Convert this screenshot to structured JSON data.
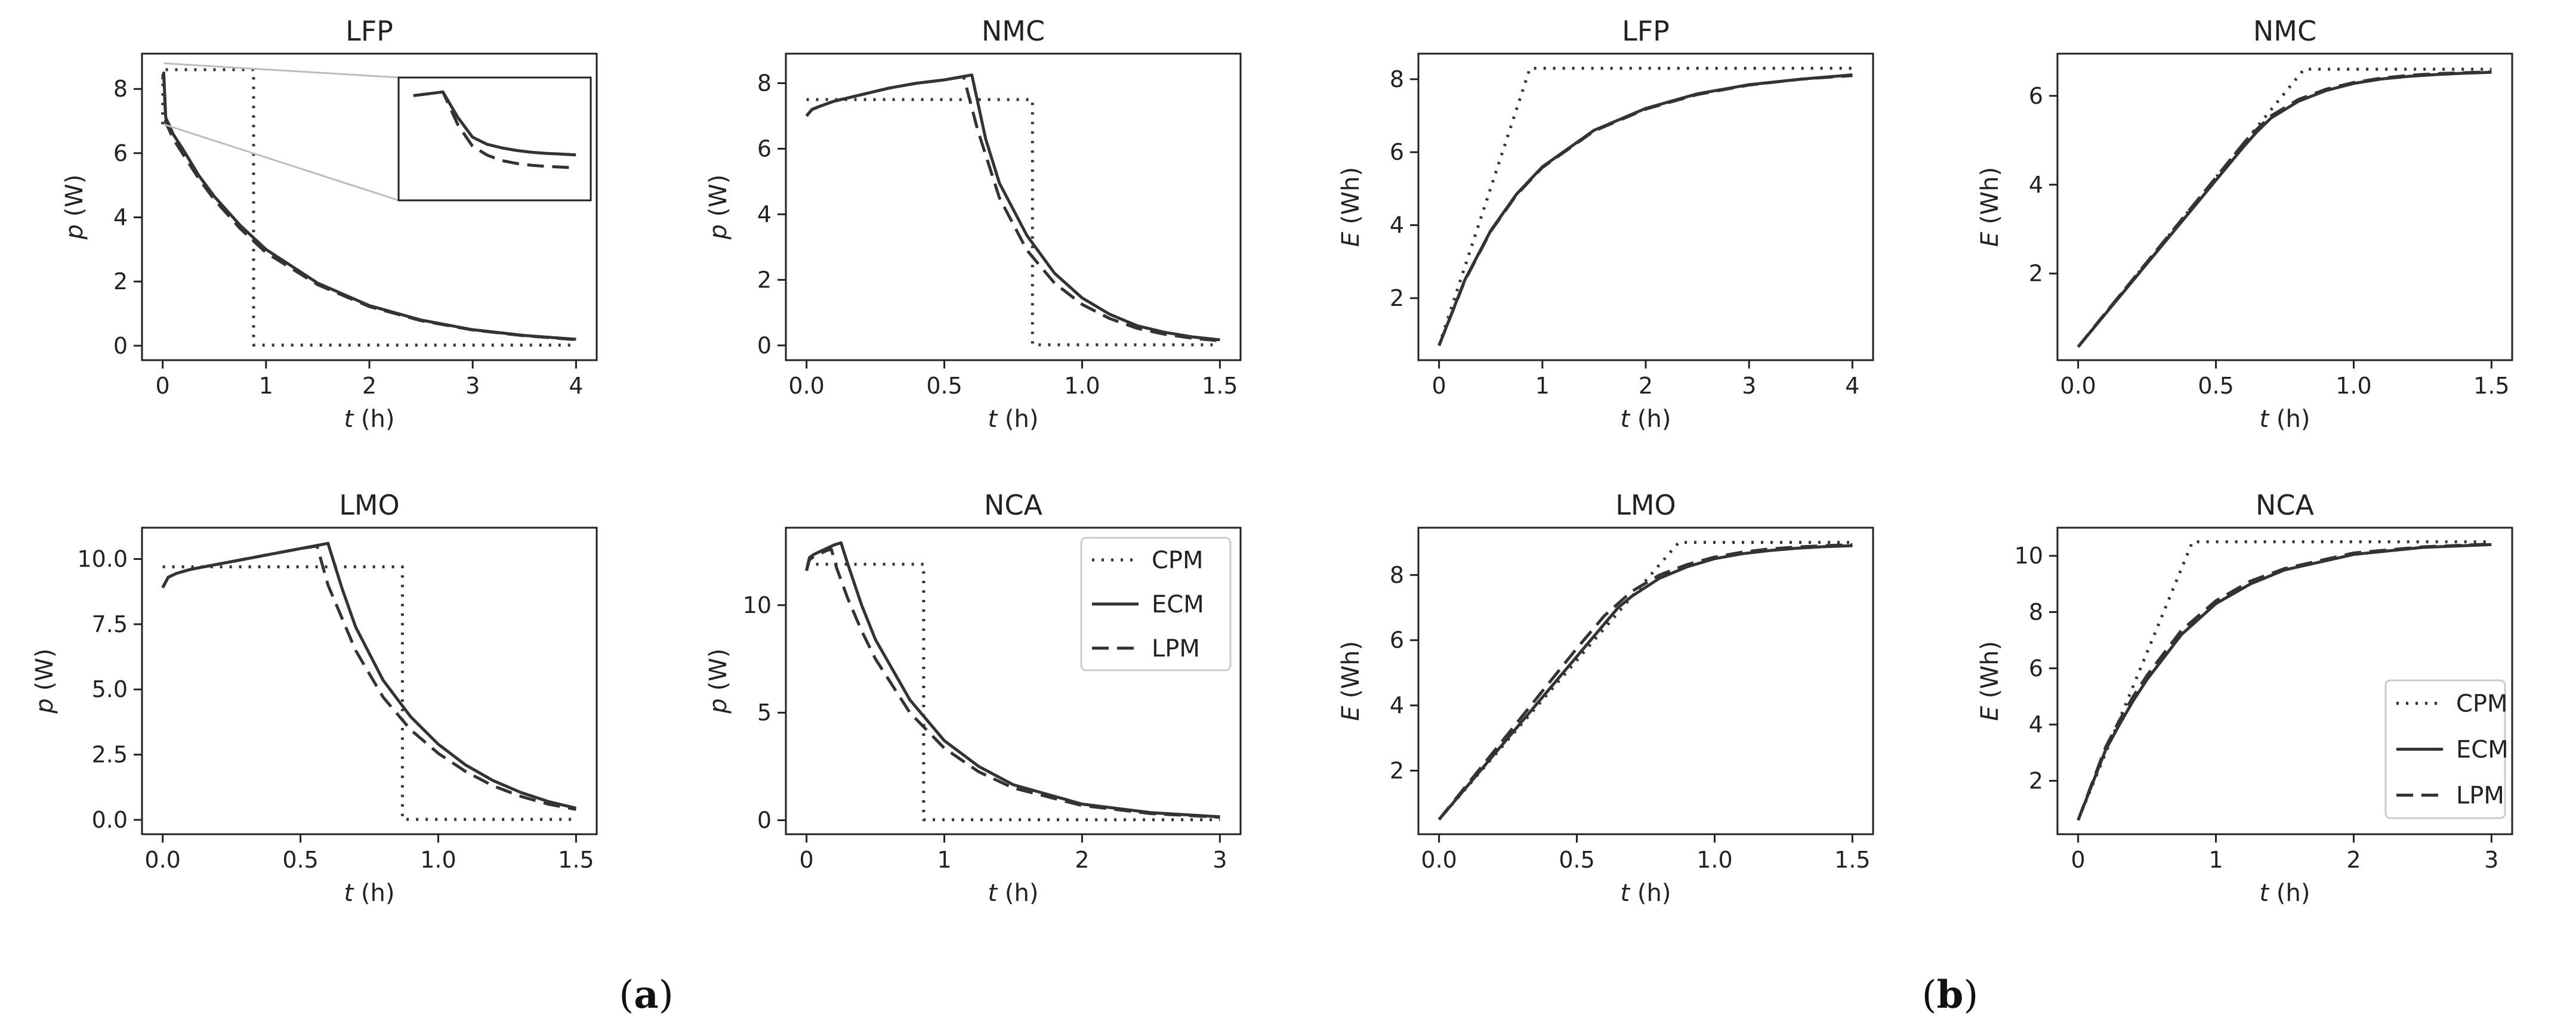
{
  "figure": {
    "panel_labels": [
      {
        "open": "(",
        "letter": "a",
        "close": ")"
      },
      {
        "open": "(",
        "letter": "b",
        "close": ")"
      }
    ]
  },
  "chart_data": [
    {
      "type": "line",
      "title": "LFP",
      "xlabel_var": "t",
      "xlabel_unit": " (h)",
      "ylabel_var": "p",
      "ylabel_unit": " (W)",
      "xlim": [
        -0.2,
        4.2
      ],
      "ylim": [
        -0.45,
        9.1
      ],
      "xticks": [
        0,
        1,
        2,
        3,
        4
      ],
      "xtick_labels": [
        "0",
        "1",
        "2",
        "3",
        "4"
      ],
      "yticks": [
        0,
        2,
        4,
        6,
        8
      ],
      "ytick_labels": [
        "0",
        "2",
        "4",
        "6",
        "8"
      ],
      "series": [
        {
          "name": "CPM",
          "style": "dotted",
          "x": [
            0,
            0.002,
            0.88,
            0.88,
            4.0
          ],
          "y": [
            6.9,
            8.6,
            8.6,
            0.02,
            0.02
          ]
        },
        {
          "name": "ECM",
          "style": "solid",
          "x": [
            0,
            0.01,
            0.03,
            0.06,
            0.1,
            0.2,
            0.35,
            0.5,
            0.75,
            1.0,
            1.5,
            2.0,
            2.5,
            3.0,
            3.5,
            4.0
          ],
          "y": [
            8.3,
            8.5,
            7.1,
            6.9,
            6.6,
            6.1,
            5.3,
            4.65,
            3.75,
            3.0,
            1.95,
            1.25,
            0.8,
            0.5,
            0.32,
            0.2
          ]
        },
        {
          "name": "LPM",
          "style": "dashed",
          "x": [
            0,
            0.01,
            0.03,
            0.06,
            0.1,
            0.2,
            0.35,
            0.5,
            0.75,
            1.0,
            1.5,
            2.0,
            2.5,
            3.0,
            3.5,
            4.0
          ],
          "y": [
            8.3,
            8.45,
            6.95,
            6.75,
            6.45,
            5.95,
            5.2,
            4.55,
            3.65,
            2.9,
            1.9,
            1.22,
            0.78,
            0.49,
            0.31,
            0.19
          ]
        }
      ],
      "annotations": [
        "inset-zoom of peak region"
      ]
    },
    {
      "type": "line",
      "title": "NMC",
      "xlabel_var": "t",
      "xlabel_unit": " (h)",
      "ylabel_var": "p",
      "ylabel_unit": " (W)",
      "xlim": [
        -0.075,
        1.575
      ],
      "ylim": [
        -0.45,
        8.9
      ],
      "xticks": [
        0,
        0.5,
        1.0,
        1.5
      ],
      "xtick_labels": [
        "0.0",
        "0.5",
        "1.0",
        "1.5"
      ],
      "yticks": [
        0,
        2,
        4,
        6,
        8
      ],
      "ytick_labels": [
        "0",
        "2",
        "4",
        "6",
        "8"
      ],
      "series": [
        {
          "name": "CPM",
          "style": "dotted",
          "x": [
            0,
            0.82,
            0.82,
            1.5
          ],
          "y": [
            7.5,
            7.5,
            0.02,
            0.02
          ]
        },
        {
          "name": "ECM",
          "style": "solid",
          "x": [
            0,
            0.02,
            0.05,
            0.1,
            0.2,
            0.3,
            0.4,
            0.5,
            0.6,
            0.65,
            0.7,
            0.8,
            0.9,
            1.0,
            1.1,
            1.2,
            1.3,
            1.4,
            1.5
          ],
          "y": [
            7.0,
            7.2,
            7.3,
            7.45,
            7.65,
            7.85,
            8.0,
            8.1,
            8.25,
            6.3,
            4.95,
            3.35,
            2.2,
            1.45,
            0.95,
            0.6,
            0.4,
            0.26,
            0.17
          ]
        },
        {
          "name": "LPM",
          "style": "dashed",
          "x": [
            0,
            0.02,
            0.05,
            0.1,
            0.2,
            0.3,
            0.4,
            0.5,
            0.57,
            0.62,
            0.7,
            0.8,
            0.9,
            1.0,
            1.1,
            1.2,
            1.3,
            1.4,
            1.5
          ],
          "y": [
            7.0,
            7.2,
            7.3,
            7.45,
            7.65,
            7.85,
            8.0,
            8.1,
            8.2,
            6.6,
            4.5,
            2.9,
            1.9,
            1.25,
            0.82,
            0.52,
            0.34,
            0.22,
            0.14
          ]
        }
      ]
    },
    {
      "type": "line",
      "title": "LFP",
      "xlabel_var": "t",
      "xlabel_unit": " (h)",
      "ylabel_var": "E",
      "ylabel_unit": " (Wh)",
      "xlim": [
        -0.2,
        4.2
      ],
      "ylim": [
        0.3,
        8.7
      ],
      "xticks": [
        0,
        1,
        2,
        3,
        4
      ],
      "xtick_labels": [
        "0",
        "1",
        "2",
        "3",
        "4"
      ],
      "yticks": [
        2,
        4,
        6,
        8
      ],
      "ytick_labels": [
        "2",
        "4",
        "6",
        "8"
      ],
      "series": [
        {
          "name": "CPM",
          "style": "dotted",
          "x": [
            0,
            0.88,
            4.0
          ],
          "y": [
            0.7,
            8.3,
            8.3
          ]
        },
        {
          "name": "ECM",
          "style": "solid",
          "x": [
            0,
            0.25,
            0.5,
            0.75,
            1.0,
            1.5,
            2.0,
            2.5,
            3.0,
            3.5,
            4.0
          ],
          "y": [
            0.7,
            2.5,
            3.85,
            4.85,
            5.6,
            6.6,
            7.2,
            7.6,
            7.85,
            8.0,
            8.12
          ]
        },
        {
          "name": "LPM",
          "style": "dashed",
          "x": [
            0,
            0.25,
            0.5,
            0.75,
            1.0,
            1.5,
            2.0,
            2.5,
            3.0,
            3.5,
            4.0
          ],
          "y": [
            0.7,
            2.48,
            3.83,
            4.83,
            5.58,
            6.58,
            7.18,
            7.58,
            7.84,
            8.0,
            8.1
          ]
        }
      ]
    },
    {
      "type": "line",
      "title": "NMC",
      "xlabel_var": "t",
      "xlabel_unit": " (h)",
      "ylabel_var": "E",
      "ylabel_unit": " (Wh)",
      "xlim": [
        -0.075,
        1.575
      ],
      "ylim": [
        0.05,
        6.95
      ],
      "xticks": [
        0,
        0.5,
        1.0,
        1.5
      ],
      "xtick_labels": [
        "0.0",
        "0.5",
        "1.0",
        "1.5"
      ],
      "yticks": [
        2,
        4,
        6
      ],
      "ytick_labels": [
        "2",
        "4",
        "6"
      ],
      "series": [
        {
          "name": "CPM",
          "style": "dotted",
          "x": [
            0,
            0.82,
            1.5
          ],
          "y": [
            0.35,
            6.6,
            6.6
          ]
        },
        {
          "name": "ECM",
          "style": "solid",
          "x": [
            0,
            0.1,
            0.2,
            0.3,
            0.4,
            0.5,
            0.6,
            0.65,
            0.7,
            0.8,
            0.9,
            1.0,
            1.1,
            1.2,
            1.3,
            1.4,
            1.5
          ],
          "y": [
            0.35,
            1.1,
            1.85,
            2.6,
            3.35,
            4.1,
            4.85,
            5.2,
            5.5,
            5.88,
            6.12,
            6.28,
            6.38,
            6.44,
            6.48,
            6.51,
            6.53
          ]
        },
        {
          "name": "LPM",
          "style": "dashed",
          "x": [
            0,
            0.1,
            0.2,
            0.3,
            0.4,
            0.5,
            0.57,
            0.62,
            0.7,
            0.8,
            0.9,
            1.0,
            1.1,
            1.2,
            1.3,
            1.4,
            1.5
          ],
          "y": [
            0.35,
            1.12,
            1.88,
            2.64,
            3.4,
            4.16,
            4.7,
            5.08,
            5.55,
            5.92,
            6.15,
            6.3,
            6.4,
            6.46,
            6.5,
            6.52,
            6.54
          ]
        }
      ]
    },
    {
      "type": "line",
      "title": "LMO",
      "xlabel_var": "t",
      "xlabel_unit": " (h)",
      "ylabel_var": "p",
      "ylabel_unit": " (W)",
      "xlim": [
        -0.075,
        1.575
      ],
      "ylim": [
        -0.55,
        11.2
      ],
      "xticks": [
        0,
        0.5,
        1.0,
        1.5
      ],
      "xtick_labels": [
        "0.0",
        "0.5",
        "1.0",
        "1.5"
      ],
      "yticks": [
        0,
        2.5,
        5,
        7.5,
        10
      ],
      "ytick_labels": [
        "0.0",
        "2.5",
        "5.0",
        "7.5",
        "10.0"
      ],
      "series": [
        {
          "name": "CPM",
          "style": "dotted",
          "x": [
            0,
            0.87,
            0.87,
            1.5
          ],
          "y": [
            9.7,
            9.7,
            0.02,
            0.02
          ]
        },
        {
          "name": "ECM",
          "style": "solid",
          "x": [
            0,
            0.02,
            0.05,
            0.1,
            0.2,
            0.3,
            0.4,
            0.5,
            0.6,
            0.65,
            0.7,
            0.8,
            0.9,
            1.0,
            1.1,
            1.2,
            1.3,
            1.4,
            1.5
          ],
          "y": [
            8.9,
            9.3,
            9.45,
            9.6,
            9.8,
            10.0,
            10.2,
            10.4,
            10.6,
            8.9,
            7.4,
            5.35,
            3.95,
            2.9,
            2.1,
            1.5,
            1.05,
            0.7,
            0.45
          ]
        },
        {
          "name": "LPM",
          "style": "dashed",
          "x": [
            0,
            0.02,
            0.05,
            0.1,
            0.2,
            0.3,
            0.4,
            0.5,
            0.56,
            0.6,
            0.7,
            0.8,
            0.9,
            1.0,
            1.1,
            1.2,
            1.3,
            1.4,
            1.5
          ],
          "y": [
            8.9,
            9.3,
            9.45,
            9.6,
            9.8,
            10.0,
            10.2,
            10.4,
            10.5,
            9.0,
            6.5,
            4.7,
            3.45,
            2.55,
            1.85,
            1.3,
            0.9,
            0.6,
            0.4
          ]
        }
      ]
    },
    {
      "type": "line",
      "title": "NCA",
      "xlabel_var": "t",
      "xlabel_unit": " (h)",
      "ylabel_var": "p",
      "ylabel_unit": " (W)",
      "xlim": [
        -0.15,
        3.15
      ],
      "ylim": [
        -0.65,
        13.6
      ],
      "xticks": [
        0,
        1,
        2,
        3
      ],
      "xtick_labels": [
        "0",
        "1",
        "2",
        "3"
      ],
      "yticks": [
        0,
        5,
        10
      ],
      "ytick_labels": [
        "0",
        "5",
        "10"
      ],
      "series": [
        {
          "name": "CPM",
          "style": "dotted",
          "x": [
            0,
            0.85,
            0.85,
            3.0
          ],
          "y": [
            11.9,
            11.9,
            0.02,
            0.02
          ]
        },
        {
          "name": "ECM",
          "style": "solid",
          "x": [
            0,
            0.02,
            0.05,
            0.1,
            0.15,
            0.2,
            0.25,
            0.3,
            0.4,
            0.5,
            0.75,
            1.0,
            1.25,
            1.5,
            2.0,
            2.5,
            3.0
          ],
          "y": [
            11.6,
            12.2,
            12.35,
            12.5,
            12.65,
            12.8,
            12.9,
            11.9,
            10.0,
            8.4,
            5.6,
            3.7,
            2.5,
            1.65,
            0.75,
            0.35,
            0.16
          ]
        },
        {
          "name": "LPM",
          "style": "dashed",
          "x": [
            0,
            0.02,
            0.05,
            0.1,
            0.15,
            0.18,
            0.22,
            0.3,
            0.4,
            0.5,
            0.75,
            1.0,
            1.25,
            1.5,
            2.0,
            2.5,
            3.0
          ],
          "y": [
            11.6,
            12.1,
            12.25,
            12.4,
            12.55,
            12.6,
            11.7,
            10.3,
            8.8,
            7.5,
            5.0,
            3.35,
            2.25,
            1.5,
            0.68,
            0.31,
            0.14
          ]
        }
      ]
    },
    {
      "type": "line",
      "title": "LMO",
      "xlabel_var": "t",
      "xlabel_unit": " (h)",
      "ylabel_var": "E",
      "ylabel_unit": " (Wh)",
      "xlim": [
        -0.075,
        1.575
      ],
      "ylim": [
        0.05,
        9.45
      ],
      "xticks": [
        0,
        0.5,
        1.0,
        1.5
      ],
      "xtick_labels": [
        "0.0",
        "0.5",
        "1.0",
        "1.5"
      ],
      "yticks": [
        2,
        4,
        6,
        8
      ],
      "ytick_labels": [
        "2",
        "4",
        "6",
        "8"
      ],
      "series": [
        {
          "name": "CPM",
          "style": "dotted",
          "x": [
            0,
            0.87,
            1.5
          ],
          "y": [
            0.5,
            9.0,
            9.0
          ]
        },
        {
          "name": "ECM",
          "style": "solid",
          "x": [
            0,
            0.1,
            0.2,
            0.3,
            0.4,
            0.5,
            0.6,
            0.65,
            0.7,
            0.8,
            0.9,
            1.0,
            1.1,
            1.2,
            1.3,
            1.4,
            1.5
          ],
          "y": [
            0.5,
            1.5,
            2.5,
            3.5,
            4.5,
            5.5,
            6.5,
            7.0,
            7.35,
            7.9,
            8.25,
            8.5,
            8.65,
            8.75,
            8.82,
            8.87,
            8.9
          ]
        },
        {
          "name": "LPM",
          "style": "dashed",
          "x": [
            0,
            0.1,
            0.2,
            0.3,
            0.4,
            0.5,
            0.56,
            0.6,
            0.7,
            0.8,
            0.9,
            1.0,
            1.1,
            1.2,
            1.3,
            1.4,
            1.5
          ],
          "y": [
            0.5,
            1.55,
            2.6,
            3.65,
            4.7,
            5.75,
            6.35,
            6.75,
            7.5,
            8.0,
            8.32,
            8.55,
            8.7,
            8.8,
            8.86,
            8.9,
            8.93
          ]
        }
      ]
    },
    {
      "type": "line",
      "title": "NCA",
      "xlabel_var": "t",
      "xlabel_unit": " (h)",
      "ylabel_var": "E",
      "ylabel_unit": " (Wh)",
      "xlim": [
        -0.15,
        3.15
      ],
      "ylim": [
        0.1,
        11.0
      ],
      "xticks": [
        0,
        1,
        2,
        3
      ],
      "xtick_labels": [
        "0",
        "1",
        "2",
        "3"
      ],
      "yticks": [
        2,
        4,
        6,
        8,
        10
      ],
      "ytick_labels": [
        "2",
        "4",
        "6",
        "8",
        "10"
      ],
      "series": [
        {
          "name": "CPM",
          "style": "dotted",
          "x": [
            0,
            0.83,
            3.0
          ],
          "y": [
            0.6,
            10.5,
            10.5
          ]
        },
        {
          "name": "ECM",
          "style": "solid",
          "x": [
            0,
            0.1,
            0.2,
            0.3,
            0.4,
            0.5,
            0.75,
            1.0,
            1.25,
            1.5,
            2.0,
            2.5,
            3.0
          ],
          "y": [
            0.6,
            1.85,
            3.1,
            4.0,
            4.85,
            5.6,
            7.2,
            8.3,
            9.0,
            9.5,
            10.05,
            10.3,
            10.4
          ]
        },
        {
          "name": "LPM",
          "style": "dashed",
          "x": [
            0,
            0.1,
            0.2,
            0.3,
            0.4,
            0.5,
            0.75,
            1.0,
            1.25,
            1.5,
            2.0,
            2.5,
            3.0
          ],
          "y": [
            0.6,
            1.9,
            3.2,
            4.15,
            5.0,
            5.75,
            7.35,
            8.4,
            9.1,
            9.55,
            10.1,
            10.32,
            10.42
          ]
        }
      ]
    }
  ],
  "legends": [
    {
      "panel_index": 5,
      "entries": [
        "CPM",
        "ECM",
        "LPM"
      ]
    },
    {
      "panel_index": 7,
      "entries": [
        "CPM",
        "ECM",
        "LPM"
      ]
    }
  ]
}
